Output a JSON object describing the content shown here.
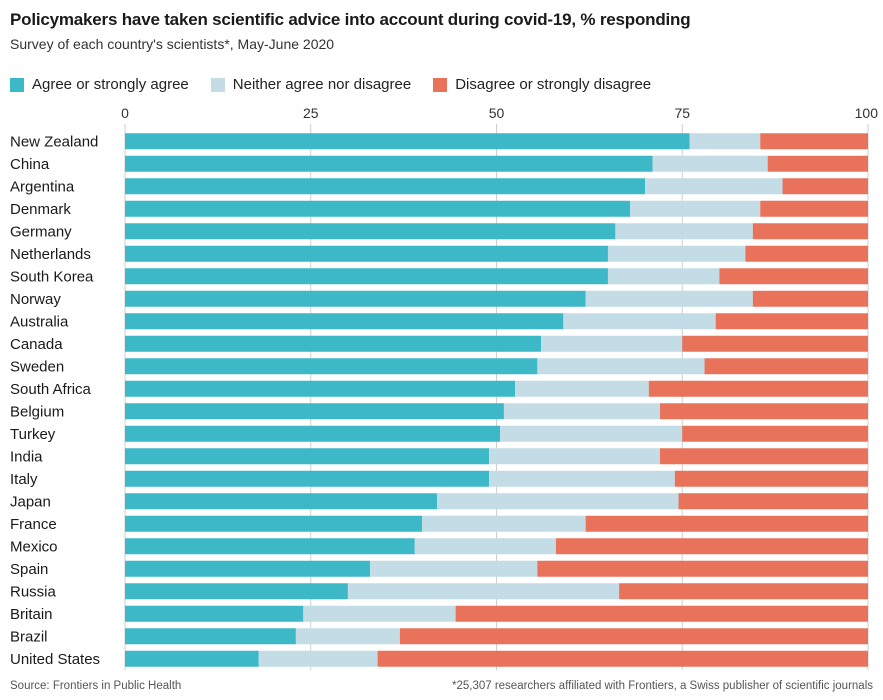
{
  "title": "Policymakers have taken scientific advice into account during covid-19, % responding",
  "subtitle": "Survey of each country's scientists*, May-June 2020",
  "source": "Source: Frontiers in Public Health",
  "footnote": "*25,307 researchers affiliated with Frontiers, a Swiss publisher of scientific journals",
  "colors": {
    "agree": "#3cb8c6",
    "neither": "#c3dce6",
    "disagree": "#e8735a",
    "grid": "#cfcfcf"
  },
  "chart_data": {
    "type": "bar",
    "orientation": "horizontal",
    "stacked": true,
    "title": "Policymakers have taken scientific advice into account during covid-19, % responding",
    "subtitle": "Survey of each country's scientists*, May-June 2020",
    "xlim": [
      0,
      100
    ],
    "xticks": [
      0,
      25,
      50,
      75,
      100
    ],
    "grid": true,
    "legend_position": "top",
    "categories": [
      "New Zealand",
      "China",
      "Argentina",
      "Denmark",
      "Germany",
      "Netherlands",
      "South Korea",
      "Norway",
      "Australia",
      "Canada",
      "Sweden",
      "South Africa",
      "Belgium",
      "Turkey",
      "India",
      "Italy",
      "Japan",
      "France",
      "Mexico",
      "Spain",
      "Russia",
      "Britain",
      "Brazil",
      "United States"
    ],
    "series": [
      {
        "name": "Agree or strongly agree",
        "values": [
          76,
          71,
          70,
          68,
          66,
          65,
          65,
          62,
          59,
          56,
          55.5,
          52.5,
          51,
          50.5,
          49,
          49,
          42,
          40,
          39,
          33,
          30,
          24,
          23,
          18
        ]
      },
      {
        "name": "Neither agree nor disagree",
        "values": [
          9.5,
          15.5,
          18.5,
          17.5,
          18.5,
          18.5,
          15,
          22.5,
          20.5,
          19,
          22.5,
          18,
          21,
          24.5,
          23,
          25,
          32.5,
          22,
          19,
          22.5,
          36.5,
          20.5,
          14,
          16
        ]
      },
      {
        "name": "Disagree or strongly disagree",
        "values": [
          14.5,
          13.5,
          11.5,
          14.5,
          15.5,
          16.5,
          20,
          15.5,
          20.5,
          25,
          22,
          29.5,
          28,
          25,
          28,
          26,
          25.5,
          38,
          42,
          44.5,
          33.5,
          55.5,
          63,
          66
        ]
      }
    ]
  }
}
